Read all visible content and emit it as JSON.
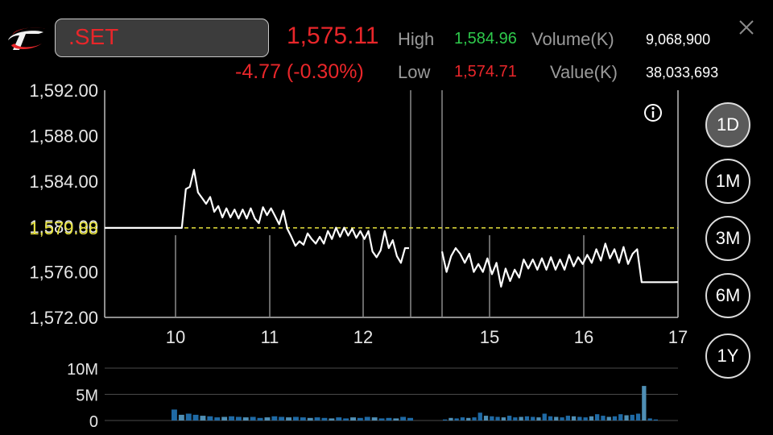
{
  "header": {
    "symbol": ".SET",
    "last_price": "1,575.11",
    "change": "-4.77 (-0.30%)",
    "high_label": "High",
    "high_value": "1,584.96",
    "low_label": "Low",
    "low_value": "1,574.71",
    "volume_label": "Volume(K)",
    "volume_value": "9,068,900",
    "value_label": "Value(K)",
    "value_value": "38,033,693"
  },
  "periods": [
    "1D",
    "1M",
    "3M",
    "6M",
    "1Y"
  ],
  "active_period": "1D",
  "icons": {
    "logo": "brand-logo-icon",
    "close": "close-icon",
    "info": "info-icon"
  },
  "colors": {
    "up": "#2ec94b",
    "down": "#e8262a",
    "reference": "#e6e23c",
    "line": "#ffffff",
    "volume_bar": "#1f6aa5"
  },
  "chart_data": [
    {
      "type": "line",
      "ylim": [
        1572,
        1592
      ],
      "yticks": [
        "1,592.00",
        "1,588.00",
        "1,584.00",
        "1,580.00",
        "1,576.00",
        "1,572.00"
      ],
      "xticks": [
        "10",
        "11",
        "12",
        "15",
        "16",
        "17"
      ],
      "reference_value": 1579.88,
      "reference_label": "1,579.88",
      "segments": [
        [
          1579.88,
          1579.88,
          1579.88,
          1579.88,
          1579.88,
          1579.88,
          1579.88,
          1579.88,
          1579.88,
          1579.88,
          1579.88,
          1579.88,
          1579.88,
          1579.88,
          1579.88,
          1579.88,
          1579.88,
          1579.88,
          1579.88,
          1579.88,
          1583.3,
          1583.5,
          1585.0,
          1583.0,
          1582.5,
          1582.0,
          1582.6,
          1581.3,
          1581.8,
          1580.8,
          1581.6,
          1580.8,
          1581.5,
          1580.7,
          1581.5,
          1580.7,
          1581.6,
          1580.7,
          1580.3,
          1581.7,
          1581.0,
          1581.6,
          1580.9,
          1580.2,
          1581.4,
          1579.8,
          1579.1,
          1578.3,
          1578.7,
          1578.4,
          1579.4,
          1578.9,
          1578.5,
          1579.1,
          1578.5,
          1579.6,
          1578.9,
          1579.9,
          1579.1,
          1579.9,
          1579.2,
          1579.8,
          1579.0,
          1579.6,
          1578.9,
          1579.6,
          1577.8,
          1577.3,
          1577.9,
          1579.6,
          1578.1,
          1578.8,
          1577.4,
          1576.8,
          1578.1,
          1578.1
        ],
        [
          1577.8,
          1576.0,
          1577.4,
          1578.1,
          1577.6,
          1576.8,
          1577.6,
          1576.0,
          1576.7,
          1576.0,
          1577.2,
          1575.8,
          1576.8,
          1574.7,
          1576.3,
          1575.2,
          1576.2,
          1575.5,
          1577.1,
          1576.3,
          1577.1,
          1576.2,
          1577.2,
          1576.2,
          1577.3,
          1576.2,
          1577.1,
          1576.2,
          1577.5,
          1576.5,
          1577.3,
          1576.7,
          1577.5,
          1576.8,
          1578.0,
          1577.0,
          1578.5,
          1577.2,
          1578.0,
          1576.8,
          1578.2,
          1576.7,
          1577.6,
          1578.0,
          1575.1,
          1575.1,
          1575.1,
          1575.1,
          1575.1,
          1575.1,
          1575.1,
          1575.1,
          1575.11
        ]
      ]
    },
    {
      "type": "bar",
      "ylim": [
        0,
        10
      ],
      "yticks": [
        "10M",
        "5M",
        "0"
      ],
      "unit": "M",
      "segments": [
        [
          2.1,
          1.1,
          1.3,
          1.1,
          0.9,
          0.8,
          0.6,
          0.7,
          0.8,
          0.7,
          0.6,
          0.7,
          0.5,
          0.6,
          0.8,
          0.7,
          0.6,
          0.7,
          0.6,
          0.5,
          0.6,
          0.5,
          0.4,
          0.6,
          0.4,
          0.6,
          0.5,
          0.7,
          0.6,
          0.4,
          0.5,
          0.4,
          0.7,
          0.5
        ],
        [
          0.2,
          0.5,
          0.4,
          0.6,
          0.5,
          0.6,
          1.5,
          0.9,
          0.8,
          0.7,
          0.6,
          0.9,
          0.6,
          0.7,
          0.8,
          0.7,
          0.6,
          1.3,
          0.8,
          0.7,
          0.6,
          0.9,
          0.8,
          0.7,
          0.6,
          0.8,
          1.2,
          0.9,
          0.7,
          0.8,
          1.2,
          1.0,
          1.1,
          1.3,
          6.6,
          0.4,
          0.2
        ]
      ]
    }
  ]
}
